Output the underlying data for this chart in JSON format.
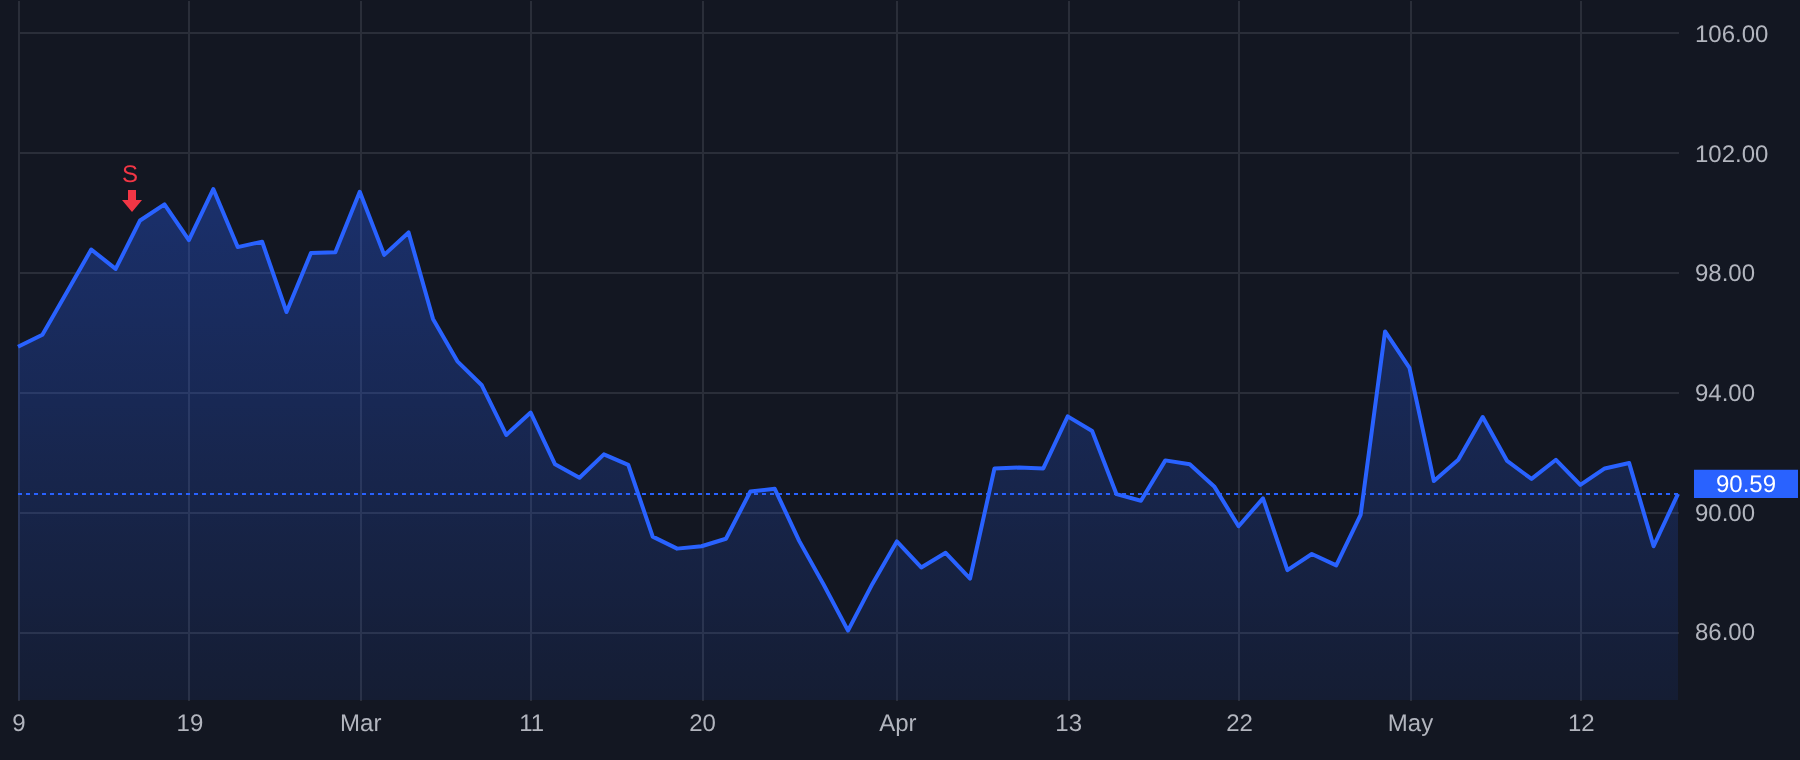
{
  "chart_data": {
    "type": "area",
    "categories": [
      "9",
      null,
      null,
      null,
      null,
      null,
      null,
      "19",
      null,
      null,
      null,
      null,
      null,
      null,
      "Mar",
      null,
      null,
      null,
      null,
      null,
      null,
      "11",
      null,
      null,
      null,
      null,
      null,
      null,
      "20",
      null,
      null,
      null,
      null,
      null,
      null,
      null,
      "Apr",
      null,
      null,
      null,
      null,
      null,
      null,
      "13",
      null,
      null,
      null,
      null,
      null,
      null,
      "22",
      null,
      null,
      null,
      null,
      null,
      null,
      "May",
      null,
      null,
      null,
      null,
      null,
      null,
      "12",
      null,
      null,
      null,
      null
    ],
    "series": [
      {
        "color": "#2962ff",
        "values": [
          95.51,
          95.91,
          97.33,
          98.76,
          98.11,
          99.73,
          100.27,
          99.07,
          100.78,
          98.84,
          99.02,
          96.67,
          98.64,
          98.67,
          100.69,
          98.58,
          99.33,
          96.44,
          95.02,
          94.22,
          92.56,
          93.31,
          91.58,
          91.13,
          91.91,
          91.56,
          89.16,
          88.76,
          88.84,
          89.09,
          90.67,
          90.76,
          89.02,
          87.56,
          86.02,
          87.58,
          89.0,
          88.13,
          88.62,
          87.76,
          91.44,
          91.47,
          91.44,
          93.18,
          92.69,
          90.58,
          90.36,
          91.71,
          91.58,
          90.84,
          89.51,
          90.44,
          88.04,
          88.58,
          88.2,
          89.89,
          96.02,
          94.8,
          91.02,
          91.73,
          93.16,
          91.69,
          91.09,
          91.73,
          90.89,
          91.44,
          91.62,
          88.84,
          90.59
        ]
      }
    ],
    "ylim": [
      83.7,
      107.1
    ],
    "yticks": [
      {
        "value": 86,
        "label": "86.00"
      },
      {
        "value": 90,
        "label": "90.00"
      },
      {
        "value": 94,
        "label": "94.00"
      },
      {
        "value": 98,
        "label": "98.00"
      },
      {
        "value": 102,
        "label": "102.00"
      },
      {
        "value": 106,
        "label": "106.00"
      }
    ],
    "grid": true,
    "ref_lines": [
      {
        "axis": "y",
        "value": 90.59,
        "label": "90.59",
        "color": "#2962ff",
        "line_style": "dotted"
      }
    ],
    "annotations": [
      "S"
    ]
  }
}
